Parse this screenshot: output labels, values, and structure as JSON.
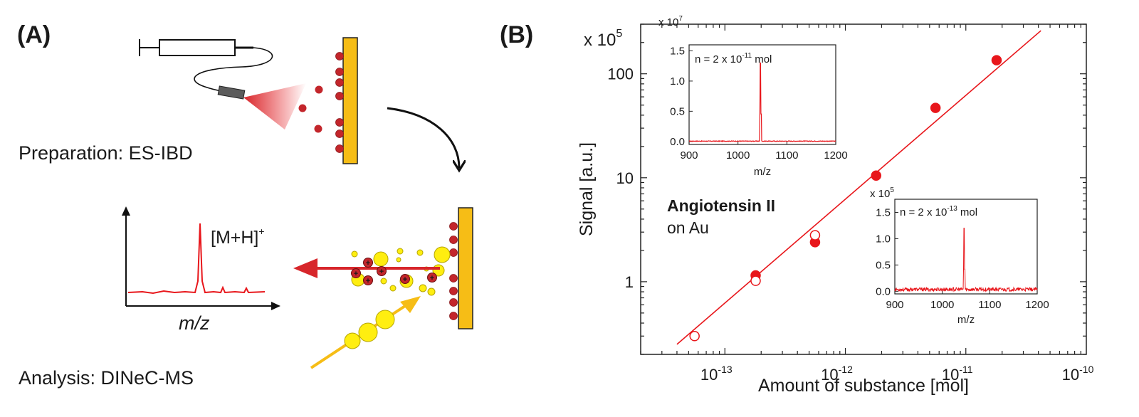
{
  "panel_a": {
    "label": "(A)",
    "preparation_caption": "Preparation: ES-IBD",
    "analysis_caption": "Analysis: DINeC-MS",
    "ion_label_main": "[M+H]",
    "ion_label_sup": "+",
    "spectrum_xlabel": "m/z",
    "ion_charge_symbol": "+"
  },
  "panel_b": {
    "label": "(B)",
    "scale_base": "x 10",
    "scale_exp": "5",
    "compound_name": "Angiotensin II",
    "substrate": "on Au"
  },
  "colors": {
    "red": "#e8161b",
    "dark_red": "#c3262b",
    "gold": "#f6bd16",
    "yellow": "#ffee10",
    "gray": "#7a7a7a"
  },
  "chart_data": [
    {
      "type": "scatter",
      "xlabel": "Amount of substance [mol]",
      "ylabel": "Signal [a.u.]",
      "xscale": "log",
      "yscale": "log",
      "xlim": [
        2e-14,
        1e-10
      ],
      "ylim": [
        0.2,
        300
      ],
      "x_ticks": [
        {
          "value": 1e-13,
          "base": "10",
          "exp": "-13"
        },
        {
          "value": 1e-12,
          "base": "10",
          "exp": "-12"
        },
        {
          "value": 1e-11,
          "base": "10",
          "exp": "-11"
        },
        {
          "value": 1e-10,
          "base": "10",
          "exp": "-10"
        }
      ],
      "y_ticks": [
        {
          "value": 1,
          "label": "1"
        },
        {
          "value": 10,
          "label": "10"
        },
        {
          "value": 100,
          "label": "100"
        }
      ],
      "series": [
        {
          "name": "filled",
          "style": "filled-circle",
          "points": [
            [
              1.8e-13,
              1.15
            ],
            [
              5.6e-13,
              2.4
            ],
            [
              1.8e-12,
              10.5
            ],
            [
              5.6e-12,
              47
            ],
            [
              1.8e-11,
              135
            ]
          ]
        },
        {
          "name": "open",
          "style": "open-circle",
          "points": [
            [
              5.6e-14,
              0.3
            ],
            [
              1.8e-13,
              1.02
            ],
            [
              5.6e-13,
              2.8
            ]
          ]
        }
      ],
      "fit_line": {
        "x": [
          4e-14,
          4.2e-11
        ],
        "y": [
          0.25,
          260
        ]
      }
    },
    {
      "type": "line",
      "title_prefix": "n = 2 x 10",
      "title_exp": "-11",
      "title_suffix": " mol",
      "scale_base": "x 10",
      "scale_exp": "7",
      "xlabel": "m/z",
      "xlim": [
        900,
        1200
      ],
      "ylim": [
        -0.05,
        1.6
      ],
      "x_ticks": [
        "900",
        "1000",
        "1100",
        "1200"
      ],
      "y_ticks": [
        "0.0",
        "0.5",
        "1.0",
        "1.5"
      ],
      "peak": {
        "x": 1046,
        "y": 1.3
      },
      "noise": 0.01
    },
    {
      "type": "line",
      "title_prefix": "n = 2 x 10",
      "title_exp": "-13",
      "title_suffix": " mol",
      "scale_base": "x 10",
      "scale_exp": "5",
      "xlabel": "m/z",
      "xlim": [
        900,
        1200
      ],
      "ylim": [
        -0.05,
        1.75
      ],
      "x_ticks": [
        "900",
        "1000",
        "1100",
        "1200"
      ],
      "y_ticks": [
        "0.0",
        "0.5",
        "1.0",
        "1.5"
      ],
      "peak": {
        "x": 1046,
        "y": 1.2
      },
      "noise": 0.07
    }
  ]
}
